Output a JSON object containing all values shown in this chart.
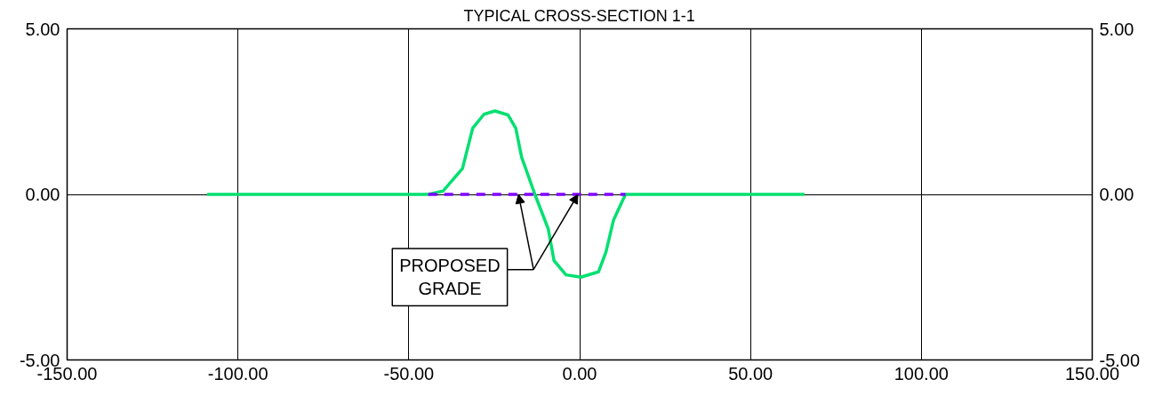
{
  "chart_data": {
    "type": "line",
    "title": "TYPICAL CROSS-SECTION 1-1",
    "xlim": [
      -150,
      150
    ],
    "xticks": [
      {
        "value": -150,
        "label": "-150.00"
      },
      {
        "value": -100,
        "label": "-100.00"
      },
      {
        "value": -50,
        "label": "-50.00"
      },
      {
        "value": 0,
        "label": "0.00"
      },
      {
        "value": 50,
        "label": "50.00"
      },
      {
        "value": 100,
        "label": "100.00"
      },
      {
        "value": 150,
        "label": "150.00"
      }
    ],
    "ylim": [
      -5,
      5
    ],
    "yticks": [
      {
        "value": -5,
        "label": "-5.00"
      },
      {
        "value": 0,
        "label": "0.00"
      },
      {
        "value": 5,
        "label": "5.00"
      }
    ],
    "y2lim": [
      -5,
      5
    ],
    "y2ticks": [
      {
        "value": -5,
        "label": "-5.00"
      },
      {
        "value": 0,
        "label": "0.00"
      },
      {
        "value": 5,
        "label": "5.00"
      }
    ],
    "grid": true,
    "series": [
      {
        "color": "#00e070",
        "line_style": "solid",
        "x": [
          -109,
          -60,
          -44.3,
          -40,
          -34.3,
          -31.3,
          -28,
          -24.8,
          -21,
          -18.7,
          -17.0,
          -13.1,
          -9.2,
          -7.5,
          -4.0,
          0.35,
          5.5,
          7.7,
          9.9,
          13.4,
          16,
          30,
          50,
          65.8
        ],
        "values": [
          0,
          0,
          0,
          0.1,
          0.78,
          2.0,
          2.42,
          2.52,
          2.4,
          2.0,
          1.13,
          0,
          -1.04,
          -2.0,
          -2.43,
          -2.5,
          -2.34,
          -1.74,
          -0.78,
          0,
          0,
          0,
          0,
          0
        ]
      },
      {
        "color": "#8000ff",
        "line_style": "dashed",
        "x": [
          -44.3,
          13.4
        ],
        "values": [
          0,
          0
        ]
      }
    ],
    "annotations": [
      "PROPOSED\nGRADE"
    ]
  }
}
